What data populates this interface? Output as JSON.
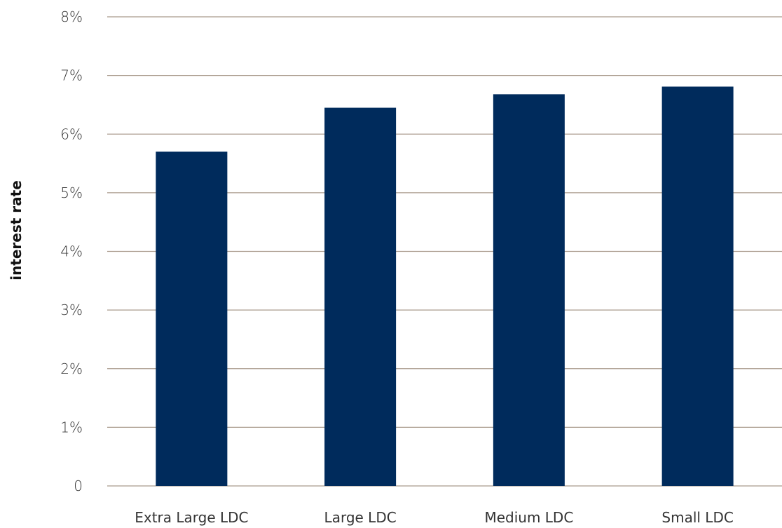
{
  "chart_data": {
    "type": "bar",
    "title": "",
    "xlabel": "",
    "ylabel": "interest rate",
    "categories": [
      "Extra Large LDC",
      "Large LDC",
      "Medium LDC",
      "Small LDC"
    ],
    "values": [
      5.7,
      6.45,
      6.68,
      6.81
    ],
    "ylim": [
      0,
      8
    ],
    "yticks": [
      0,
      1,
      2,
      3,
      4,
      5,
      6,
      7,
      8
    ],
    "ytick_labels": [
      "0",
      "1%",
      "2%",
      "3%",
      "4%",
      "5%",
      "6%",
      "7%",
      "8%"
    ],
    "grid": true,
    "legend": "none",
    "bar_color": "#002b5c",
    "grid_color": "#a99a8c"
  }
}
